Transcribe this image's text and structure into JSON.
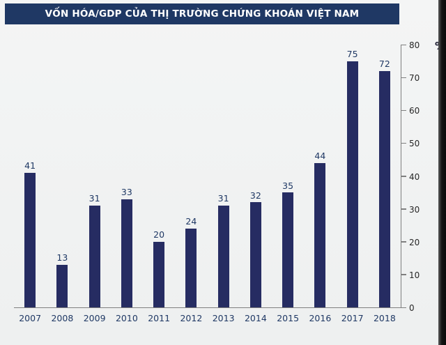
{
  "chart_data": {
    "type": "bar",
    "title": "VỐN HÓA/GDP CỦA THỊ TRƯỜNG CHỨNG KHOÁN VIỆT NAM",
    "categories": [
      "2007",
      "2008",
      "2009",
      "2010",
      "2011",
      "2012",
      "2013",
      "2014",
      "2015",
      "2016",
      "2017",
      "2018"
    ],
    "values": [
      41,
      13,
      31,
      33,
      20,
      24,
      31,
      32,
      35,
      44,
      75,
      72
    ],
    "xlabel": "",
    "ylabel": "%",
    "unit_label": "%",
    "ylim": [
      0,
      80
    ],
    "yticks": [
      0,
      10,
      20,
      30,
      40,
      50,
      60,
      70,
      80
    ],
    "grid": false,
    "legend_position": "none",
    "data_labels": true,
    "colors": {
      "bar": "#262C62",
      "title_bg": "#1F3864",
      "title_text": "#FFFFFF",
      "value_label": "#1F3864",
      "axis_line": "#7F7F7F",
      "tick_text": "#262626"
    }
  }
}
